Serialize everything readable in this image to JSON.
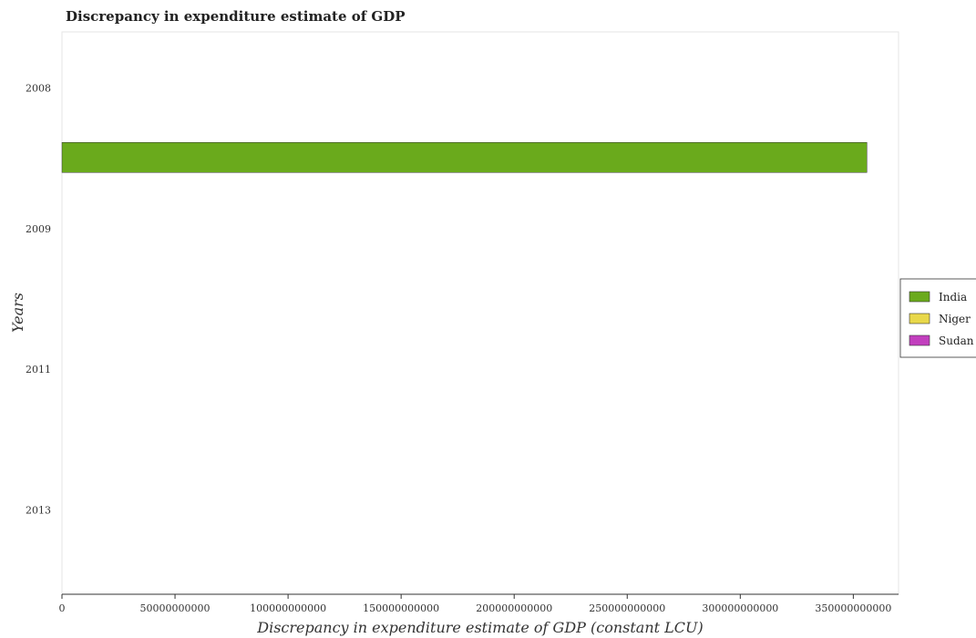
{
  "chart_data": {
    "type": "bar",
    "orientation": "horizontal",
    "title": "Discrepancy in expenditure estimate of GDP",
    "xlabel": "Discrepancy in expenditure estimate of GDP (constant LCU)",
    "ylabel": "Years",
    "categories": [
      "2008",
      "2009",
      "2011",
      "2013"
    ],
    "xlim": [
      0,
      370000000000
    ],
    "xticks": [
      0,
      50000000000,
      100000000000,
      150000000000,
      200000000000,
      250000000000,
      300000000000,
      350000000000
    ],
    "xtick_labels": [
      "0",
      "50000000000",
      "100000000000",
      "150000000000",
      "200000000000",
      "250000000000",
      "300000000000",
      "350000000000"
    ],
    "grid": false,
    "legend_position": "right",
    "series": [
      {
        "name": "India",
        "color": "#6aaa1c",
        "values": [
          356000000000,
          0,
          0,
          0
        ]
      },
      {
        "name": "Niger",
        "color": "#e8d84a",
        "values": [
          0,
          0,
          0,
          0
        ]
      },
      {
        "name": "Sudan",
        "color": "#c23fbe",
        "values": [
          0,
          0,
          0,
          0
        ]
      }
    ]
  }
}
